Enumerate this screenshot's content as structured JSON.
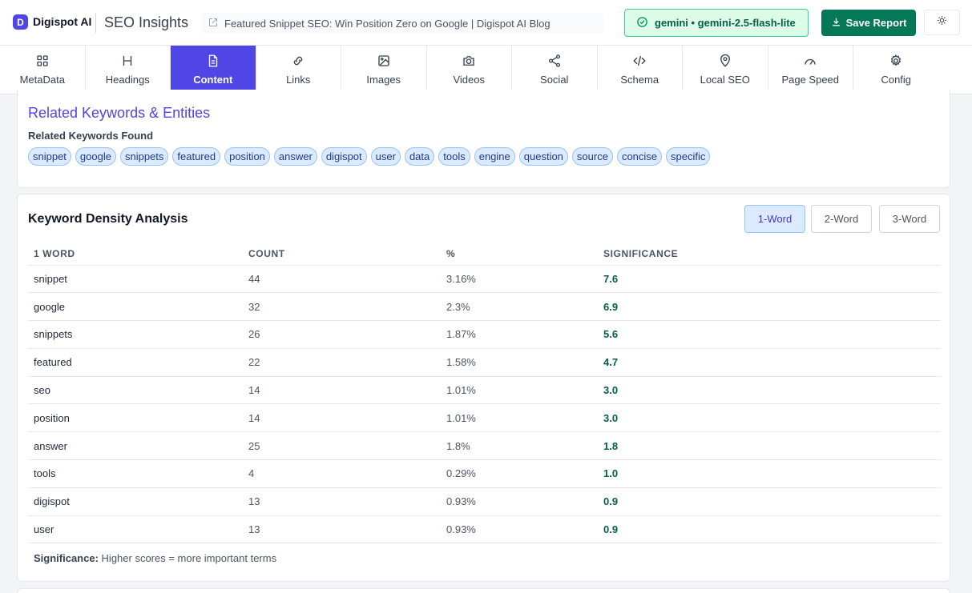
{
  "header": {
    "logo_letter": "D",
    "brand": "Digispot AI",
    "app_title": "SEO Insights",
    "page_url_title": "Featured Snippet SEO: Win Position Zero on Google | Digispot AI Blog",
    "model_badge": "gemini • gemini-2.5-flash-lite",
    "save_label": "Save Report",
    "theme_icon": "sun-icon"
  },
  "tabs": [
    {
      "label": "MetaData",
      "icon": "grid-icon"
    },
    {
      "label": "Headings",
      "icon": "heading-icon"
    },
    {
      "label": "Content",
      "icon": "document-icon",
      "active": true
    },
    {
      "label": "Links",
      "icon": "link-icon"
    },
    {
      "label": "Images",
      "icon": "image-icon"
    },
    {
      "label": "Videos",
      "icon": "camera-icon"
    },
    {
      "label": "Social",
      "icon": "share-icon"
    },
    {
      "label": "Schema",
      "icon": "code-icon"
    },
    {
      "label": "Local SEO",
      "icon": "map-pin-icon"
    },
    {
      "label": "Page Speed",
      "icon": "gauge-icon"
    },
    {
      "label": "Config",
      "icon": "gear-icon"
    }
  ],
  "related": {
    "title": "Related Keywords & Entities",
    "subtitle": "Related Keywords Found",
    "keywords": [
      "snippet",
      "google",
      "snippets",
      "featured",
      "position",
      "answer",
      "digispot",
      "user",
      "data",
      "tools",
      "engine",
      "question",
      "source",
      "concise",
      "specific"
    ]
  },
  "density": {
    "title": "Keyword Density Analysis",
    "modes": [
      "1-Word",
      "2-Word",
      "3-Word"
    ],
    "active_mode": "1-Word",
    "columns": [
      "1 WORD",
      "COUNT",
      "%",
      "SIGNIFICANCE"
    ],
    "rows": [
      {
        "word": "snippet",
        "count": "44",
        "pct": "3.16%",
        "sig": "7.6"
      },
      {
        "word": "google",
        "count": "32",
        "pct": "2.3%",
        "sig": "6.9"
      },
      {
        "word": "snippets",
        "count": "26",
        "pct": "1.87%",
        "sig": "5.6"
      },
      {
        "word": "featured",
        "count": "22",
        "pct": "1.58%",
        "sig": "4.7"
      },
      {
        "word": "seo",
        "count": "14",
        "pct": "1.01%",
        "sig": "3.0"
      },
      {
        "word": "position",
        "count": "14",
        "pct": "1.01%",
        "sig": "3.0"
      },
      {
        "word": "answer",
        "count": "25",
        "pct": "1.8%",
        "sig": "1.8"
      },
      {
        "word": "tools",
        "count": "4",
        "pct": "0.29%",
        "sig": "1.0"
      },
      {
        "word": "digispot",
        "count": "13",
        "pct": "0.93%",
        "sig": "0.9"
      },
      {
        "word": "user",
        "count": "13",
        "pct": "0.93%",
        "sig": "0.9"
      }
    ],
    "footnote_label": "Significance:",
    "footnote_text": "Higher scores = more important terms"
  },
  "colors": {
    "accent": "#4f46e5",
    "save_green": "#047857",
    "badge_bg": "#dcfce7",
    "chip_bg": "#dbeafe"
  }
}
